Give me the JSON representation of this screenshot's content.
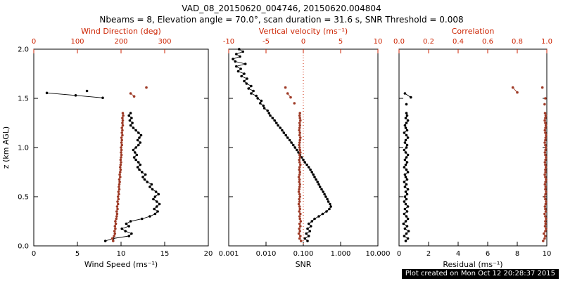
{
  "title": "VAD_08_20150620_004746, 20150620.004804",
  "subtitle": "Nbeams = 8, Elevation angle = 70.0°, scan duration = 31.6 s, SNR Threshold = 0.008",
  "stamp": "Plot created on Mon Oct 12 20:28:37 2015",
  "colors": {
    "black": "#000000",
    "red_axis": "#cc2200",
    "red_series": "#9e3a26"
  },
  "z_profile": [
    0.05,
    0.075,
    0.1,
    0.125,
    0.15,
    0.175,
    0.2,
    0.225,
    0.25,
    0.275,
    0.3,
    0.325,
    0.35,
    0.375,
    0.4,
    0.425,
    0.45,
    0.475,
    0.5,
    0.525,
    0.55,
    0.575,
    0.6,
    0.625,
    0.65,
    0.675,
    0.7,
    0.725,
    0.75,
    0.775,
    0.8,
    0.825,
    0.85,
    0.875,
    0.9,
    0.925,
    0.95,
    0.975,
    1.0,
    1.025,
    1.05,
    1.075,
    1.1,
    1.125,
    1.15,
    1.175,
    1.2,
    1.225,
    1.25,
    1.275,
    1.3,
    1.325,
    1.35
  ],
  "chart_data": [
    {
      "type": "scatter",
      "panel": "wind",
      "ylabel": "z (km AGL)",
      "ylim": [
        0.0,
        2.0
      ],
      "yticks": [
        0.0,
        0.5,
        1.0,
        1.5,
        2.0
      ],
      "ytick_labels": [
        "0.0",
        "0.5",
        "1.0",
        "1.5",
        "2.0"
      ],
      "show_ytick_labels": true,
      "bottom_axis": {
        "label": "Wind Speed (ms⁻¹)",
        "lim": [
          0,
          20
        ],
        "ticks": [
          0,
          5,
          10,
          15,
          20
        ],
        "tick_labels": [
          "0",
          "5",
          "10",
          "15",
          "20"
        ]
      },
      "top_axis": {
        "label": "Wind Direction (deg)",
        "lim": [
          0,
          400
        ],
        "ticks": [
          0,
          100,
          200,
          300
        ],
        "tick_labels": [
          "0",
          "100",
          "200",
          "300"
        ]
      },
      "series": [
        {
          "name": "wind-speed",
          "axis": "bottom",
          "color": "black",
          "connect": true,
          "z": "profile",
          "x": [
            8.2,
            9.1,
            10.9,
            11.2,
            10.5,
            10.1,
            10.9,
            10.6,
            11.1,
            12.4,
            13.3,
            13.9,
            14.2,
            13.8,
            14.1,
            14.4,
            14.1,
            13.7,
            13.9,
            14.3,
            14.0,
            13.6,
            13.3,
            13.5,
            13.0,
            12.7,
            12.5,
            12.8,
            12.4,
            12.1,
            11.9,
            12.2,
            12.0,
            11.7,
            11.5,
            11.8,
            11.6,
            11.4,
            11.7,
            12.0,
            12.2,
            11.9,
            12.1,
            12.3,
            12.0,
            11.7,
            11.4,
            11.1,
            11.3,
            11.0,
            11.2,
            10.9,
            11.1
          ]
        },
        {
          "name": "wind-direction",
          "axis": "top",
          "color": "red",
          "connect": true,
          "z": "profile",
          "x": [
            182,
            180,
            184,
            186,
            185,
            187,
            186,
            188,
            187,
            189,
            190,
            191,
            190,
            192,
            191,
            193,
            192,
            194,
            193,
            195,
            194,
            196,
            195,
            196,
            197,
            196,
            198,
            197,
            198,
            199,
            198,
            199,
            200,
            199,
            200,
            201,
            200,
            201,
            200,
            202,
            201,
            202,
            201,
            203,
            202,
            203,
            202,
            204,
            203,
            204,
            203,
            205,
            204
          ]
        },
        {
          "name": "wind-speed-upper",
          "axis": "bottom",
          "color": "black",
          "connect": true,
          "z": [
            1.555,
            1.53,
            1.505
          ],
          "x": [
            1.5,
            4.8,
            7.9
          ]
        },
        {
          "name": "wind-speed-upper-isolated",
          "axis": "bottom",
          "color": "black",
          "connect": false,
          "z": [
            1.575
          ],
          "x": [
            6.1
          ]
        },
        {
          "name": "wind-direction-upper",
          "axis": "top",
          "color": "red",
          "connect": true,
          "z": [
            1.55,
            1.52
          ],
          "x": [
            222,
            230
          ]
        },
        {
          "name": "wind-direction-upper-isolated",
          "axis": "top",
          "color": "red",
          "connect": false,
          "z": [
            1.61
          ],
          "x": [
            258
          ]
        }
      ]
    },
    {
      "type": "scatter",
      "panel": "snr",
      "ylim": [
        0.0,
        2.0
      ],
      "yticks": [
        0.0,
        0.5,
        1.0,
        1.5,
        2.0
      ],
      "ytick_labels": [
        "0.0",
        "0.5",
        "1.0",
        "1.5",
        "2.0"
      ],
      "show_ytick_labels": false,
      "bottom_axis": {
        "label": "SNR",
        "scale": "log",
        "lim": [
          0.001,
          10
        ],
        "ticks": [
          0.001,
          0.01,
          0.1,
          1,
          10
        ],
        "tick_labels": [
          "0.001",
          "0.010",
          "0.100",
          "1.000",
          "10.000"
        ]
      },
      "top_axis": {
        "label": "Vertical velocity (ms⁻¹)",
        "lim": [
          -10,
          10
        ],
        "ticks": [
          -10,
          -5,
          0,
          5,
          10
        ],
        "tick_labels": [
          "-10",
          "-5",
          "0",
          "5",
          "10"
        ]
      },
      "ref_line": {
        "axis": "top",
        "value": 0,
        "style": "dotted"
      },
      "series": [
        {
          "name": "snr",
          "axis": "bottom",
          "color": "black",
          "connect": true,
          "z": "profile",
          "x": [
            0.13,
            0.11,
            0.14,
            0.12,
            0.15,
            0.13,
            0.16,
            0.14,
            0.17,
            0.2,
            0.26,
            0.33,
            0.42,
            0.5,
            0.55,
            0.52,
            0.47,
            0.44,
            0.4,
            0.37,
            0.34,
            0.31,
            0.28,
            0.26,
            0.24,
            0.22,
            0.2,
            0.185,
            0.17,
            0.155,
            0.14,
            0.125,
            0.11,
            0.1,
            0.09,
            0.082,
            0.074,
            0.067,
            0.06,
            0.054,
            0.048,
            0.043,
            0.038,
            0.034,
            0.03,
            0.027,
            0.024,
            0.021,
            0.019,
            0.017,
            0.015,
            0.013,
            0.012
          ]
        },
        {
          "name": "snr-upper",
          "axis": "bottom",
          "color": "black",
          "connect": true,
          "z": [
            1.375,
            1.4,
            1.425,
            1.45,
            1.475,
            1.5,
            1.525,
            1.55,
            1.575,
            1.6,
            1.625,
            1.65,
            1.675,
            1.7,
            1.725,
            1.75,
            1.775,
            1.8,
            1.825,
            1.85,
            1.875,
            1.9,
            1.925,
            1.95,
            1.975,
            2.0
          ],
          "x": [
            0.011,
            0.009,
            0.0085,
            0.007,
            0.0075,
            0.006,
            0.0055,
            0.004,
            0.0046,
            0.0034,
            0.004,
            0.003,
            0.0026,
            0.0031,
            0.0022,
            0.0026,
            0.0018,
            0.0021,
            0.0016,
            0.0028,
            0.0015,
            0.0013,
            0.002,
            0.0016,
            0.0024,
            0.0019
          ]
        },
        {
          "name": "vertical-velocity",
          "axis": "top",
          "color": "red",
          "connect": true,
          "z": "profile",
          "x": [
            -0.3,
            -0.5,
            -0.4,
            -0.6,
            -0.45,
            -0.55,
            -0.4,
            -0.5,
            -0.35,
            -0.45,
            -0.5,
            -0.4,
            -0.55,
            -0.45,
            -0.5,
            -0.6,
            -0.5,
            -0.55,
            -0.45,
            -0.5,
            -0.6,
            -0.55,
            -0.5,
            -0.45,
            -0.55,
            -0.5,
            -0.6,
            -0.5,
            -0.45,
            -0.55,
            -0.5,
            -0.4,
            -0.5,
            -0.55,
            -0.45,
            -0.5,
            -0.4,
            -0.45,
            -0.5,
            -0.55,
            -0.5,
            -0.45,
            -0.4,
            -0.5,
            -0.45,
            -0.55,
            -0.5,
            -0.45,
            -0.5,
            -0.4,
            -0.45,
            -0.5,
            -0.45
          ]
        },
        {
          "name": "vertical-velocity-upper",
          "axis": "top",
          "color": "red",
          "connect": true,
          "z": [
            1.55,
            1.51
          ],
          "x": [
            -2.1,
            -1.7
          ]
        },
        {
          "name": "vertical-velocity-upper-isolated",
          "axis": "top",
          "color": "red",
          "connect": false,
          "z": [
            1.45,
            1.61
          ],
          "x": [
            -1.2,
            -2.4
          ]
        }
      ]
    },
    {
      "type": "scatter",
      "panel": "residual",
      "ylim": [
        0.0,
        2.0
      ],
      "yticks": [
        0.0,
        0.5,
        1.0,
        1.5,
        2.0
      ],
      "ytick_labels": [
        "0.0",
        "0.5",
        "1.0",
        "1.5",
        "2.0"
      ],
      "show_ytick_labels": false,
      "bottom_axis": {
        "label": "Residual (ms⁻¹)",
        "lim": [
          0,
          10
        ],
        "ticks": [
          0,
          2,
          4,
          6,
          8,
          10
        ],
        "tick_labels": [
          "0",
          "2",
          "4",
          "6",
          "8",
          "10"
        ]
      },
      "top_axis": {
        "label": "Correlation",
        "lim": [
          0,
          1
        ],
        "ticks": [
          0,
          0.2,
          0.4,
          0.6,
          0.8,
          1.0
        ],
        "tick_labels": [
          "0.0",
          "0.2",
          "0.4",
          "0.6",
          "0.8",
          "1.0"
        ]
      },
      "series": [
        {
          "name": "residual",
          "axis": "bottom",
          "color": "black",
          "connect": true,
          "z": "profile",
          "x": [
            0.45,
            0.6,
            0.35,
            0.5,
            0.65,
            0.4,
            0.55,
            0.3,
            0.45,
            0.6,
            0.5,
            0.35,
            0.55,
            0.4,
            0.6,
            0.45,
            0.35,
            0.5,
            0.4,
            0.55,
            0.45,
            0.6,
            0.4,
            0.5,
            0.35,
            0.55,
            0.45,
            0.4,
            0.6,
            0.5,
            0.35,
            0.45,
            0.55,
            0.4,
            0.5,
            0.6,
            0.45,
            0.35,
            0.5,
            0.55,
            0.4,
            0.45,
            0.6,
            0.5,
            0.35,
            0.55,
            0.45,
            0.4,
            0.5,
            0.6,
            0.45,
            0.55,
            0.5
          ]
        },
        {
          "name": "residual-upper",
          "axis": "bottom",
          "color": "black",
          "connect": true,
          "z": [
            1.55,
            1.51
          ],
          "x": [
            0.4,
            0.8
          ]
        },
        {
          "name": "residual-upper-isolated",
          "axis": "bottom",
          "color": "black",
          "connect": false,
          "z": [
            1.44
          ],
          "x": [
            0.5
          ]
        },
        {
          "name": "correlation",
          "axis": "top",
          "color": "red",
          "connect": true,
          "z": "profile",
          "x": [
            0.975,
            0.985,
            0.99,
            0.98,
            0.99,
            0.995,
            0.988,
            0.992,
            0.99,
            0.995,
            0.99,
            0.985,
            0.993,
            0.99,
            0.987,
            0.992,
            0.995,
            0.99,
            0.986,
            0.991,
            0.995,
            0.99,
            0.992,
            0.987,
            0.991,
            0.995,
            0.99,
            0.986,
            0.991,
            0.99,
            0.994,
            0.99,
            0.987,
            0.991,
            0.995,
            0.99,
            0.987,
            0.991,
            0.994,
            0.99,
            0.986,
            0.99,
            0.992,
            0.995,
            0.99,
            0.987,
            0.991,
            0.994,
            0.99,
            0.986,
            0.99,
            0.993,
            0.988
          ]
        },
        {
          "name": "correlation-upper",
          "axis": "top",
          "color": "red",
          "connect": true,
          "z": [
            1.61,
            1.56
          ],
          "x": [
            0.77,
            0.8
          ]
        },
        {
          "name": "correlation-upper-isolated",
          "axis": "top",
          "color": "red",
          "connect": false,
          "z": [
            1.61,
            1.5,
            1.44
          ],
          "x": [
            0.97,
            0.99,
            0.985
          ]
        }
      ]
    }
  ]
}
